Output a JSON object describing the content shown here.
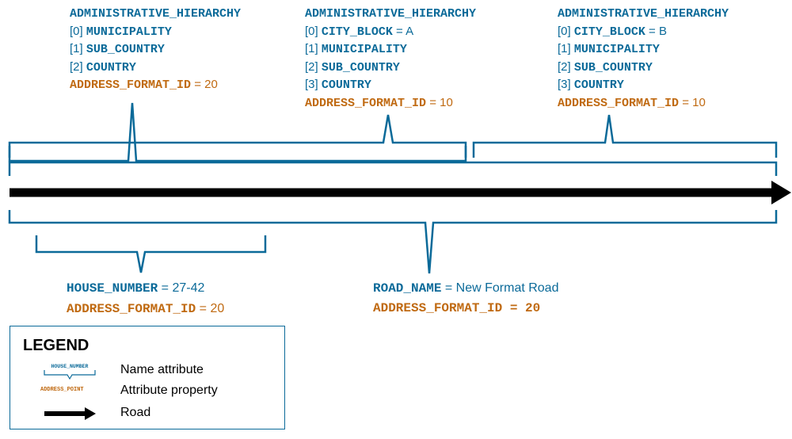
{
  "labels": {
    "left": {
      "hierarchy_key": "ADMINISTRATIVE_HIERARCHY",
      "items": [
        {
          "index": "[0]",
          "key": "MUNICIPALITY",
          "value": ""
        },
        {
          "index": "[1]",
          "key": "SUB_COUNTRY",
          "value": ""
        },
        {
          "index": "[2]",
          "key": "COUNTRY",
          "value": ""
        }
      ],
      "format_key": "ADDRESS_FORMAT_ID",
      "format_value": " = 20"
    },
    "middle": {
      "hierarchy_key": "ADMINISTRATIVE_HIERARCHY",
      "items": [
        {
          "index": "[0]",
          "key": "CITY_BLOCK",
          "value": " = A"
        },
        {
          "index": "[1]",
          "key": "MUNICIPALITY",
          "value": ""
        },
        {
          "index": "[2]",
          "key": "SUB_COUNTRY",
          "value": ""
        },
        {
          "index": "[3]",
          "key": "COUNTRY",
          "value": ""
        }
      ],
      "format_key": "ADDRESS_FORMAT_ID",
      "format_value": " = 10"
    },
    "right": {
      "hierarchy_key": "ADMINISTRATIVE_HIERARCHY",
      "items": [
        {
          "index": "[0]",
          "key": "CITY_BLOCK",
          "value": " = B"
        },
        {
          "index": "[1]",
          "key": "MUNICIPALITY",
          "value": ""
        },
        {
          "index": "[2]",
          "key": "SUB_COUNTRY",
          "value": ""
        },
        {
          "index": "[3]",
          "key": "COUNTRY",
          "value": ""
        }
      ],
      "format_key": "ADDRESS_FORMAT_ID",
      "format_value": " = 10"
    },
    "house": {
      "name_key": "HOUSE_NUMBER",
      "name_value": " = 27-42",
      "format_key": "ADDRESS_FORMAT_ID",
      "format_value": " = 20"
    },
    "road": {
      "name_key": "ROAD_NAME",
      "name_value": " = New Format Road",
      "format_key": "ADDRESS_FORMAT_ID",
      "format_value": " = 20"
    }
  },
  "legend": {
    "title": "LEGEND",
    "name_attr_sample": "HOUSE_NUMBER",
    "name_attr_label": "Name attribute",
    "attr_prop_sample": "ADDRESS_POINT",
    "attr_prop_label": "Attribute property",
    "road_label": "Road"
  },
  "colors": {
    "bracket": "#0b6a99",
    "property": "#c06a12",
    "road": "#000000"
  }
}
